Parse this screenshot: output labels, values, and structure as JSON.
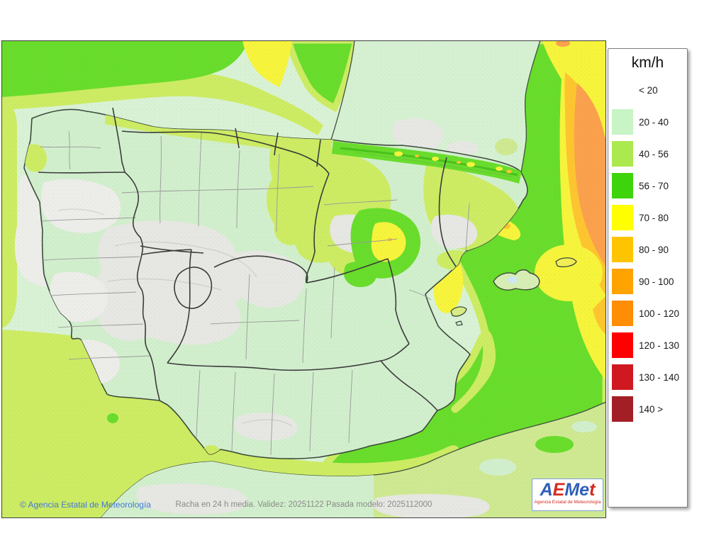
{
  "map": {
    "copyright": "© Agencia Estatal de Meteorología",
    "caption": "Racha en 24 h media. Validez: 20251122 Pasada modelo: 2025112000",
    "logo": {
      "letters": [
        {
          "ch": "A",
          "color": "#2e5fb7"
        },
        {
          "ch": "E",
          "color": "#d42b1e"
        },
        {
          "ch": "M",
          "color": "#2e5fb7"
        },
        {
          "ch": "e",
          "color": "#2e5fb7"
        },
        {
          "ch": "t",
          "color": "#d42b1e"
        }
      ],
      "subtitle": "Agencia Estatal de Meteorología"
    }
  },
  "legend": {
    "title": "km/h",
    "items": [
      {
        "label": "< 20",
        "color": null
      },
      {
        "label": "20 - 40",
        "color": "#c8f4c6"
      },
      {
        "label": "40 - 56",
        "color": "#ace94f"
      },
      {
        "label": "56 - 70",
        "color": "#3ed40b"
      },
      {
        "label": "70 - 80",
        "color": "#ffff00"
      },
      {
        "label": "80 - 90",
        "color": "#ffc400"
      },
      {
        "label": "90 - 100",
        "color": "#ffa300"
      },
      {
        "label": "100 - 120",
        "color": "#ff8d05"
      },
      {
        "label": "120 - 130",
        "color": "#fe0000"
      },
      {
        "label": "130 - 140",
        "color": "#d01820"
      },
      {
        "label": "140 >",
        "color": "#a22025"
      }
    ]
  },
  "colors": {
    "sea_mint": "#d9f2d6",
    "land_mint": "#d2efcd",
    "france_mint": "#d6f1d2",
    "gray": "#e7e7e3",
    "gray_soft": "#ededea",
    "yellowgreen": "#cdec63",
    "yg_soft": "#cfe992",
    "green": "#69dd2b",
    "green_deep": "#2faa12",
    "yellow": "#f7f43c",
    "amber": "#fec52f",
    "orange": "#fba14d",
    "lake_blue": "#cfe9f2",
    "island_pale": "#d7eeb4",
    "island_yellow": "#f2ee55",
    "island_yg": "#d9ec85"
  }
}
